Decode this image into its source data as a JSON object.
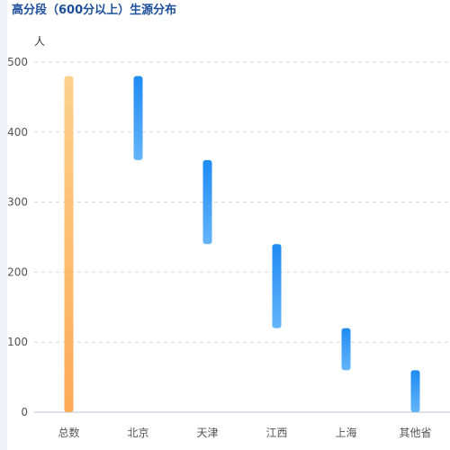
{
  "chart_data": {
    "type": "bar",
    "title": "高分段（600分以上）生源分布",
    "ylabel": "人",
    "xlabel": "",
    "categories": [
      "总数",
      "北京",
      "天津",
      "江西",
      "上海",
      "其他省"
    ],
    "ranges": [
      [
        0,
        480
      ],
      [
        360,
        480
      ],
      [
        240,
        360
      ],
      [
        120,
        240
      ],
      [
        60,
        120
      ],
      [
        0,
        60
      ]
    ],
    "ylim": [
      0,
      500
    ],
    "yticks": [
      0,
      100,
      200,
      300,
      400,
      500
    ],
    "grid": true,
    "legend": "none"
  },
  "colors": {
    "total_top": "#fcd18c",
    "total_bottom": "#fdaa56",
    "bar_top": "#1f8bf4",
    "bar_bottom": "#64b4f9",
    "grid": "#d8d8d8",
    "axis": "#b9c6da",
    "title": "#1d4f9c"
  }
}
